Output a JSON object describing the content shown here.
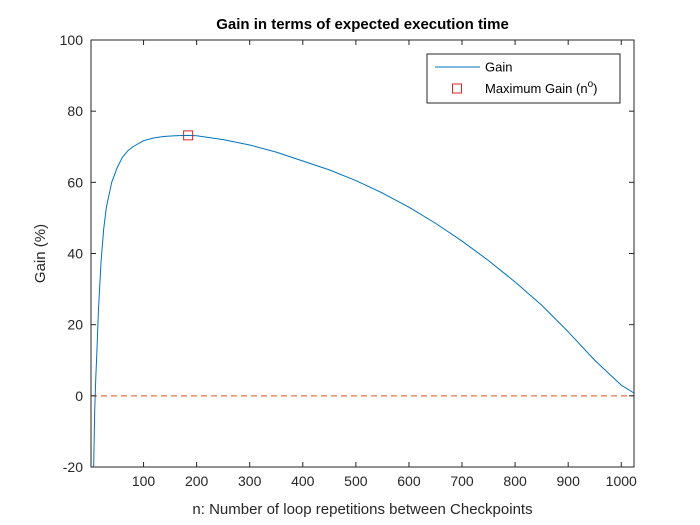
{
  "chart_data": {
    "type": "line",
    "title": "Gain in terms of expected execution time",
    "xlabel": "n: Number of loop repetitions between Checkpoints",
    "ylabel": "Gain (%)",
    "xlim": [
      1,
      1024
    ],
    "ylim": [
      -20,
      100
    ],
    "xticks": [
      100,
      200,
      300,
      400,
      500,
      600,
      700,
      800,
      900,
      1000
    ],
    "yticks": [
      -20,
      0,
      20,
      40,
      60,
      80,
      100
    ],
    "grid": false,
    "legend_position": "top-right",
    "series": [
      {
        "name": "Gain",
        "color": "#0072BD",
        "style": "solid",
        "x": [
          6,
          8,
          10,
          12,
          15,
          20,
          25,
          30,
          40,
          50,
          60,
          70,
          80,
          100,
          120,
          140,
          160,
          184,
          200,
          250,
          300,
          350,
          400,
          450,
          500,
          550,
          600,
          650,
          700,
          750,
          800,
          850,
          900,
          950,
          1000,
          1024
        ],
        "y": [
          -20,
          -4,
          5,
          12,
          24,
          38,
          47,
          53,
          60,
          64,
          67,
          68.8,
          70,
          71.7,
          72.5,
          72.9,
          73.1,
          73.2,
          73.1,
          72,
          70.5,
          68.5,
          66,
          63.5,
          60.5,
          57,
          53,
          48.5,
          43.5,
          38,
          32,
          25.5,
          18,
          10,
          3,
          0.8
        ]
      },
      {
        "name": "",
        "color": "#D95319",
        "style": "dashed",
        "x": [
          1,
          1024
        ],
        "y": [
          0,
          0
        ]
      },
      {
        "name": "Maximum Gain (n°)",
        "color": "#D62728",
        "style": "marker-square",
        "x": [
          184
        ],
        "y": [
          73.2
        ]
      }
    ],
    "legend": [
      {
        "label": "Gain",
        "type": "line",
        "color": "#0072BD"
      },
      {
        "label": "Maximum Gain (n",
        "superscript": "o",
        "suffix": ")",
        "type": "marker",
        "color": "#D62728"
      }
    ]
  }
}
